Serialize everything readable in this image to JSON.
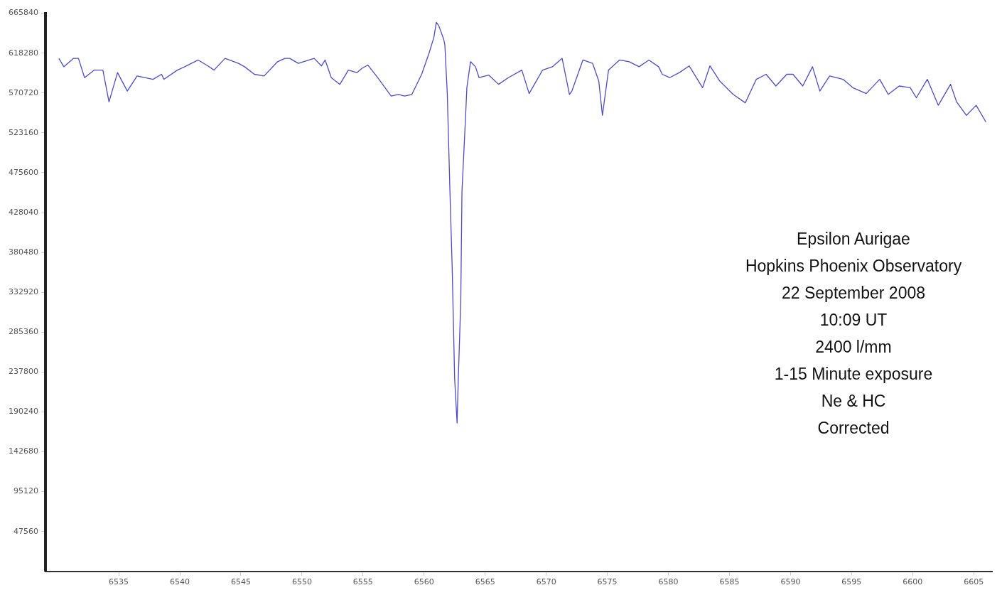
{
  "chart_data": {
    "type": "line",
    "xlim": [
      6529,
      6606.5
    ],
    "xticks": [
      6535,
      6540,
      6545,
      6550,
      6555,
      6560,
      6565,
      6570,
      6575,
      6580,
      6585,
      6590,
      6595,
      6600,
      6605
    ],
    "ylim": [
      0,
      665840
    ],
    "yticks": [
      47560,
      95120,
      142680,
      190240,
      237800,
      285360,
      332920,
      380480,
      428040,
      475600,
      523160,
      570720,
      618280,
      665840
    ],
    "grid": false,
    "legend": false,
    "marker": "none",
    "line_style": "solid",
    "series": [
      {
        "color": "#4b4bd0",
        "x": [
          6530.1,
          6530.5,
          6531.3,
          6531.7,
          6532.2,
          6533.0,
          6533.7,
          6534.2,
          6534.9,
          6535.7,
          6536.5,
          6537.8,
          6538.5,
          6538.7,
          6539.8,
          6540.4,
          6541.5,
          6542.3,
          6542.8,
          6543.7,
          6544.8,
          6545.3,
          6546.1,
          6546.9,
          6548.0,
          6548.6,
          6549.0,
          6549.7,
          6551.0,
          6551.6,
          6551.9,
          6552.4,
          6553.1,
          6553.8,
          6554.5,
          6554.9,
          6555.4,
          6556.2,
          6556.8,
          6557.3,
          6557.9,
          6558.4,
          6559.0,
          6559.8,
          6560.4,
          6560.8,
          6561.0,
          6561.2,
          6561.6,
          6561.7,
          6561.9,
          6562.1,
          6562.3,
          6562.5,
          6562.7,
          6562.8,
          6563.0,
          6563.1,
          6563.4,
          6563.5,
          6563.8,
          6564.2,
          6564.5,
          6565.3,
          6566.1,
          6566.9,
          6568.0,
          6568.6,
          6569.7,
          6570.5,
          6571.3,
          6571.9,
          6572.1,
          6573.0,
          6573.8,
          6574.3,
          6574.6,
          6575.1,
          6576.0,
          6576.8,
          6577.6,
          6578.4,
          6579.2,
          6579.5,
          6580.1,
          6580.9,
          6581.7,
          6582.8,
          6583.4,
          6584.2,
          6585.3,
          6586.3,
          6587.2,
          6588.0,
          6588.8,
          6589.7,
          6590.2,
          6591.0,
          6591.8,
          6592.4,
          6593.2,
          6594.3,
          6595.1,
          6596.2,
          6597.3,
          6598.0,
          6598.9,
          6599.8,
          6600.3,
          6601.2,
          6602.1,
          6603.1,
          6603.6,
          6604.4,
          6605.2,
          6606.0
        ],
        "values": [
          612000,
          602000,
          612000,
          612000,
          589000,
          598000,
          598000,
          560000,
          595000,
          573000,
          591000,
          587000,
          593000,
          587000,
          598000,
          602000,
          610000,
          603000,
          598000,
          612000,
          606000,
          602000,
          593000,
          591000,
          608000,
          612000,
          612000,
          606000,
          612000,
          603000,
          610000,
          589000,
          581000,
          598000,
          595000,
          600000,
          604000,
          589000,
          577000,
          567000,
          569000,
          567000,
          569000,
          593000,
          618000,
          637000,
          655000,
          651000,
          635000,
          628000,
          569000,
          461000,
          362000,
          230000,
          177000,
          230000,
          321000,
          453000,
          544000,
          577000,
          608000,
          602000,
          589000,
          592000,
          581000,
          589000,
          598000,
          570000,
          598000,
          602000,
          612000,
          569000,
          573000,
          610000,
          606000,
          585000,
          544000,
          598000,
          610000,
          608000,
          602000,
          610000,
          602000,
          593000,
          589000,
          595000,
          603000,
          577000,
          603000,
          585000,
          569000,
          559000,
          587000,
          593000,
          579000,
          593000,
          593000,
          579000,
          602000,
          573000,
          591000,
          587000,
          577000,
          570000,
          587000,
          569000,
          579000,
          577000,
          565000,
          587000,
          556000,
          581000,
          560000,
          544000,
          556000,
          536000
        ]
      }
    ],
    "annotations": [
      "Epsilon Aurigae",
      "Hopkins Phoenix Observatory",
      "22 September 2008",
      "10:09 UT",
      "2400 l/mm",
      "1-15 Minute exposure",
      "Ne & HC",
      "Corrected"
    ]
  }
}
